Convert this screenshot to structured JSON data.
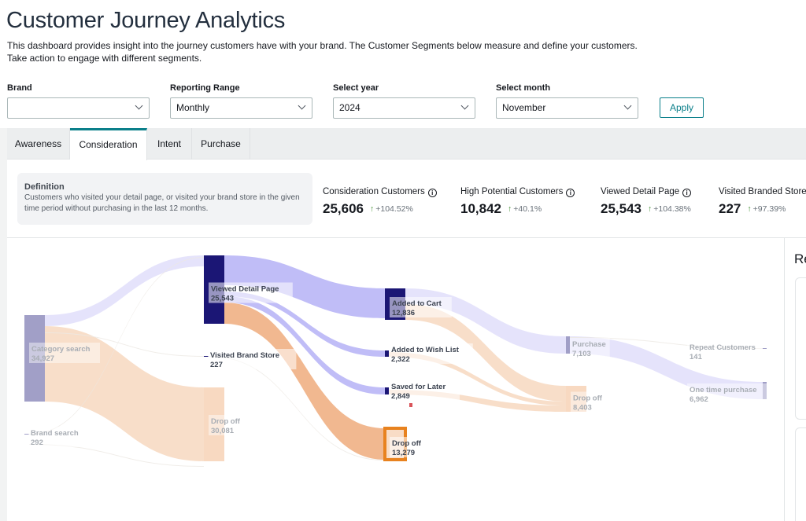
{
  "header": {
    "title": "Customer Journey Analytics",
    "description": "This dashboard provides insight into the journey customers have with your brand. The Customer Segments below measure and define your customers. Take action to engage with different segments."
  },
  "filters": [
    {
      "label": "Brand",
      "value": ""
    },
    {
      "label": "Reporting Range",
      "value": "Monthly"
    },
    {
      "label": "Select year",
      "value": "2024"
    },
    {
      "label": "Select month",
      "value": "November"
    }
  ],
  "apply_label": "Apply",
  "tabs": [
    {
      "label": "Awareness",
      "active": false
    },
    {
      "label": "Consideration",
      "active": true
    },
    {
      "label": "Intent",
      "active": false
    },
    {
      "label": "Purchase",
      "active": false
    }
  ],
  "definition": {
    "title": "Definition",
    "text": "Customers who visited your detail page, or visited your brand store in the given time period without purchasing in the last 12 months."
  },
  "metrics": [
    {
      "label": "Consideration Customers",
      "value": "25,606",
      "change": "+104.52%",
      "info": true
    },
    {
      "label": "High Potential Customers",
      "value": "10,842",
      "change": "+40.1%",
      "info": true
    },
    {
      "label": "Viewed Detail Page",
      "value": "25,543",
      "change": "+104.38%",
      "info": true
    },
    {
      "label": "Visited Branded Store",
      "value": "227",
      "change": "+97.39%",
      "info": false
    }
  ],
  "right_panel": {
    "title": "Re"
  },
  "colors": {
    "accent": "#0a7f8a",
    "up_arrow": "#3e8c2d",
    "node_dark": "#1b1675",
    "node_muted": "#a19fc7",
    "flow_purple": "#bdb9f7",
    "flow_purple_light": "#e4e2fb",
    "flow_orange": "#f0b48a",
    "flow_orange_light": "#f8dcc6",
    "drop_node": "#e8821f"
  },
  "chart_data": {
    "type": "sankey",
    "nodes": [
      {
        "id": "category",
        "name": "Category search",
        "value": "34,927",
        "stage": 0,
        "style": "muted"
      },
      {
        "id": "brand",
        "name": "Brand search",
        "value": "292",
        "stage": 0,
        "style": "muted"
      },
      {
        "id": "viewed",
        "name": "Viewed Detail Page",
        "value": "25,543",
        "stage": 1,
        "style": "dark"
      },
      {
        "id": "store",
        "name": "Visited Brand Store",
        "value": "227",
        "stage": 1,
        "style": "dark"
      },
      {
        "id": "drop1",
        "name": "Drop off",
        "value": "30,081",
        "stage": 1,
        "style": "drop-muted"
      },
      {
        "id": "cart",
        "name": "Added to Cart",
        "value": "12,836",
        "stage": 2,
        "style": "dark"
      },
      {
        "id": "wish",
        "name": "Added to Wish List",
        "value": "2,322",
        "stage": 2,
        "style": "dark"
      },
      {
        "id": "saved",
        "name": "Saved for Later",
        "value": "2,849",
        "stage": 2,
        "style": "dark"
      },
      {
        "id": "drop2",
        "name": "Drop off",
        "value": "13,279",
        "stage": 2,
        "style": "drop"
      },
      {
        "id": "purchase",
        "name": "Purchase",
        "value": "7,103",
        "stage": 3,
        "style": "muted"
      },
      {
        "id": "drop3",
        "name": "Drop off",
        "value": "8,403",
        "stage": 3,
        "style": "drop-muted"
      },
      {
        "id": "repeat",
        "name": "Repeat Customers",
        "value": "141",
        "stage": 4,
        "style": "muted"
      },
      {
        "id": "onetime",
        "name": "One time purchase",
        "value": "6,962",
        "stage": 4,
        "style": "muted"
      }
    ],
    "links": [
      {
        "source": "category",
        "target": "viewed",
        "value": 4850,
        "kind": "purple-light"
      },
      {
        "source": "category",
        "target": "drop1",
        "value": 30081,
        "kind": "orange-light"
      },
      {
        "source": "category",
        "target": "store",
        "value": 60,
        "kind": "faint"
      },
      {
        "source": "brand",
        "target": "viewed",
        "value": 60,
        "kind": "faint"
      },
      {
        "source": "brand",
        "target": "drop1",
        "value": 60,
        "kind": "faint"
      },
      {
        "source": "viewed",
        "target": "cart",
        "value": 12836,
        "kind": "purple"
      },
      {
        "source": "viewed",
        "target": "wish",
        "value": 2322,
        "kind": "purple"
      },
      {
        "source": "viewed",
        "target": "saved",
        "value": 2849,
        "kind": "purple"
      },
      {
        "source": "viewed",
        "target": "drop2",
        "value": 13279,
        "kind": "orange"
      },
      {
        "source": "store",
        "target": "drop2",
        "value": 60,
        "kind": "faint"
      },
      {
        "source": "cart",
        "target": "purchase",
        "value": 7103,
        "kind": "purple-light"
      },
      {
        "source": "cart",
        "target": "drop3",
        "value": 5733,
        "kind": "orange-light"
      },
      {
        "source": "wish",
        "target": "drop3",
        "value": 1200,
        "kind": "orange-light"
      },
      {
        "source": "saved",
        "target": "drop3",
        "value": 1470,
        "kind": "orange-light"
      },
      {
        "source": "purchase",
        "target": "onetime",
        "value": 6962,
        "kind": "purple-light"
      },
      {
        "source": "purchase",
        "target": "repeat",
        "value": 141,
        "kind": "faint"
      }
    ]
  }
}
